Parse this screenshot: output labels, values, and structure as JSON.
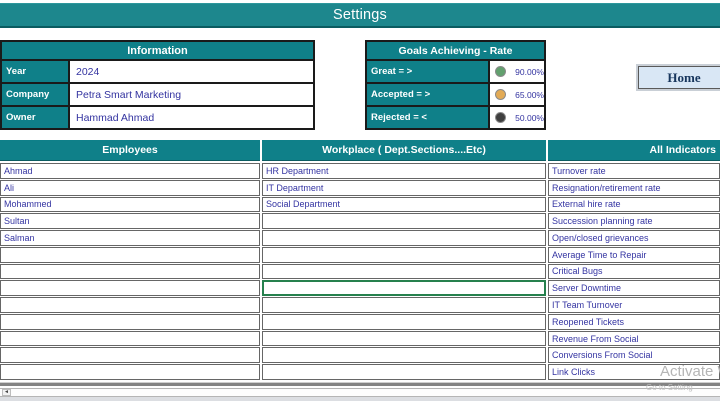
{
  "title": "Settings",
  "info": {
    "header": "Information",
    "rows": [
      {
        "label": "Year",
        "value": "2024"
      },
      {
        "label": "Company",
        "value": "Petra Smart Marketing"
      },
      {
        "label": "Owner",
        "value": "Hammad Ahmad"
      }
    ]
  },
  "goals": {
    "header": "Goals Achieving - Rate",
    "rows": [
      {
        "label": "Great = >",
        "value": "90.00%",
        "color": "#62a06e"
      },
      {
        "label": "Accepted = >",
        "value": "65.00%",
        "color": "#e2aa55"
      },
      {
        "label": "Rejected = <",
        "value": "50.00%",
        "color": "#3f3f3f"
      }
    ]
  },
  "home_button": {
    "label": "Home"
  },
  "table": {
    "row_count": 13,
    "columns": [
      {
        "header": "Employees"
      },
      {
        "header": "Workplace ( Dept.Sections....Etc)"
      },
      {
        "header": "All Indicators"
      }
    ],
    "employees": [
      "Ahmad",
      "Ali",
      "Mohammed",
      "Sultan",
      "Salman"
    ],
    "workplaces": [
      "HR Department",
      "IT Department",
      "Social Department"
    ],
    "indicators": [
      "Turnover rate",
      "Resignation/retirement rate",
      "External hire rate",
      "Succession planning rate",
      "Open/closed grievances",
      "Average Time to Repair",
      "Critical Bugs",
      "Server Downtime",
      "IT Team Turnover",
      "Reopened Tickets",
      "Revenue From Social",
      "Conversions From Social",
      "Link Clicks"
    ],
    "selected_cell": {
      "column": 1,
      "row": 7
    }
  },
  "scrollbar": {
    "left_arrow": "◄"
  },
  "watermark": {
    "line1": "Activate W",
    "line2": "Go to Setting"
  },
  "colors": {
    "teal_header": "#0f8089",
    "teal_title": "#1d878d",
    "cell_text": "#3434a2",
    "selection_green": "#26814e"
  }
}
